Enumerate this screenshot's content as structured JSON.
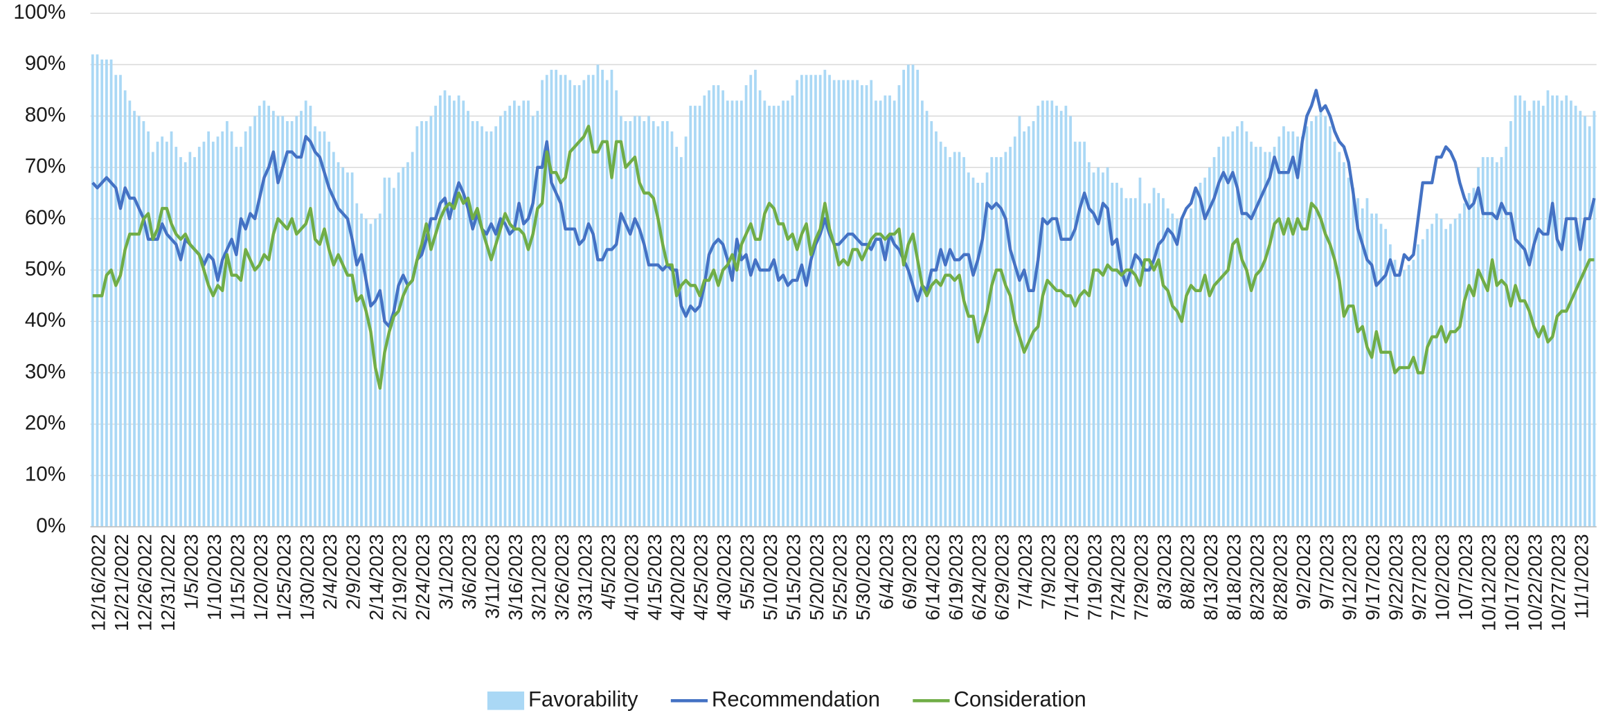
{
  "chart_data": {
    "type": "combo",
    "categories": [
      "12/16/2022",
      null,
      null,
      null,
      null,
      "12/21/2022",
      null,
      null,
      null,
      null,
      "12/26/2022",
      null,
      null,
      null,
      null,
      "12/31/2022",
      null,
      null,
      null,
      null,
      "1/5/2023",
      null,
      null,
      null,
      null,
      "1/10/2023",
      null,
      null,
      null,
      null,
      "1/15/2023",
      null,
      null,
      null,
      null,
      "1/20/2023",
      null,
      null,
      null,
      null,
      "1/25/2023",
      null,
      null,
      null,
      null,
      "1/30/2023",
      null,
      null,
      null,
      null,
      "2/4/2023",
      null,
      null,
      null,
      null,
      "2/9/2023",
      null,
      null,
      null,
      null,
      "2/14/2023",
      null,
      null,
      null,
      null,
      "2/19/2023",
      null,
      null,
      null,
      null,
      "2/24/2023",
      null,
      null,
      null,
      null,
      "3/1/2023",
      null,
      null,
      null,
      null,
      "3/6/2023",
      null,
      null,
      null,
      null,
      "3/11/2023",
      null,
      null,
      null,
      null,
      "3/16/2023",
      null,
      null,
      null,
      null,
      "3/21/2023",
      null,
      null,
      null,
      null,
      "3/26/2023",
      null,
      null,
      null,
      null,
      "3/31/2023",
      null,
      null,
      null,
      null,
      "4/5/2023",
      null,
      null,
      null,
      null,
      "4/10/2023",
      null,
      null,
      null,
      null,
      "4/15/2023",
      null,
      null,
      null,
      null,
      "4/20/2023",
      null,
      null,
      null,
      null,
      "4/25/2023",
      null,
      null,
      null,
      null,
      "4/30/2023",
      null,
      null,
      null,
      null,
      "5/5/2023",
      null,
      null,
      null,
      null,
      "5/10/2023",
      null,
      null,
      null,
      null,
      "5/15/2023",
      null,
      null,
      null,
      null,
      "5/20/2023",
      null,
      null,
      null,
      null,
      "5/25/2023",
      null,
      null,
      null,
      null,
      "5/30/2023",
      null,
      null,
      null,
      null,
      "6/4/2023",
      null,
      null,
      null,
      null,
      "6/9/2023",
      null,
      null,
      null,
      null,
      "6/14/2023",
      null,
      null,
      null,
      null,
      "6/19/2023",
      null,
      null,
      null,
      null,
      "6/24/2023",
      null,
      null,
      null,
      null,
      "6/29/2023",
      null,
      null,
      null,
      null,
      "7/4/2023",
      null,
      null,
      null,
      null,
      "7/9/2023",
      null,
      null,
      null,
      null,
      "7/14/2023",
      null,
      null,
      null,
      null,
      "7/19/2023",
      null,
      null,
      null,
      null,
      "7/24/2023",
      null,
      null,
      null,
      null,
      "7/29/2023",
      null,
      null,
      null,
      null,
      "8/3/2023",
      null,
      null,
      null,
      null,
      "8/8/2023",
      null,
      null,
      null,
      null,
      "8/13/2023",
      null,
      null,
      null,
      null,
      "8/18/2023",
      null,
      null,
      null,
      null,
      "8/23/2023",
      null,
      null,
      null,
      null,
      "8/28/2023",
      null,
      null,
      null,
      null,
      "9/2/2023",
      null,
      null,
      null,
      null,
      "9/7/2023",
      null,
      null,
      null,
      null,
      "9/12/2023",
      null,
      null,
      null,
      null,
      "9/17/2023",
      null,
      null,
      null,
      null,
      "9/22/2023",
      null,
      null,
      null,
      null,
      "9/27/2023",
      null,
      null,
      null,
      null,
      "10/2/2023",
      null,
      null,
      null,
      null,
      "10/7/2023",
      null,
      null,
      null,
      null,
      "10/12/2023",
      null,
      null,
      null,
      null,
      "10/17/2023",
      null,
      null,
      null,
      null,
      "10/22/2023",
      null,
      null,
      null,
      null,
      "10/27/2023",
      null,
      null,
      null,
      null,
      "11/1/2023",
      null,
      null,
      null,
      null
    ],
    "series": [
      {
        "name": "Favorability",
        "type": "bar",
        "color": "#aad8f5",
        "values": [
          92,
          92,
          91,
          91,
          91,
          88,
          88,
          85,
          83,
          81,
          80,
          79,
          77,
          73,
          75,
          76,
          75,
          77,
          74,
          72,
          71,
          73,
          72,
          74,
          75,
          77,
          75,
          76,
          77,
          79,
          77,
          74,
          74,
          77,
          78,
          80,
          82,
          83,
          82,
          81,
          80,
          80,
          79,
          79,
          80,
          81,
          83,
          82,
          78,
          77,
          77,
          75,
          73,
          71,
          70,
          69,
          69,
          63,
          61,
          60,
          59,
          60,
          61,
          68,
          68,
          66,
          69,
          70,
          71,
          73,
          78,
          79,
          79,
          80,
          82,
          84,
          85,
          84,
          83,
          84,
          83,
          81,
          79,
          79,
          78,
          77,
          77,
          78,
          80,
          81,
          82,
          83,
          82,
          83,
          83,
          80,
          81,
          87,
          88,
          89,
          89,
          88,
          88,
          87,
          86,
          86,
          87,
          88,
          88,
          90,
          89,
          87,
          89,
          85,
          80,
          79,
          79,
          80,
          80,
          79,
          80,
          79,
          78,
          79,
          79,
          77,
          74,
          72,
          76,
          82,
          82,
          82,
          84,
          85,
          86,
          86,
          85,
          83,
          83,
          83,
          83,
          86,
          88,
          89,
          85,
          83,
          82,
          82,
          82,
          83,
          83,
          84,
          87,
          88,
          88,
          88,
          88,
          88,
          89,
          88,
          87,
          87,
          87,
          87,
          87,
          87,
          86,
          86,
          87,
          83,
          83,
          84,
          84,
          83,
          86,
          89,
          90,
          90,
          89,
          83,
          81,
          79,
          77,
          75,
          74,
          72,
          73,
          73,
          72,
          69,
          68,
          67,
          67,
          69,
          72,
          72,
          72,
          73,
          74,
          76,
          80,
          77,
          78,
          79,
          82,
          83,
          83,
          83,
          82,
          81,
          82,
          80,
          75,
          75,
          75,
          71,
          69,
          70,
          69,
          70,
          67,
          67,
          66,
          64,
          64,
          64,
          68,
          63,
          63,
          66,
          65,
          64,
          62,
          61,
          60,
          60,
          60,
          62,
          65,
          67,
          68,
          70,
          72,
          74,
          76,
          76,
          77,
          78,
          79,
          77,
          75,
          74,
          74,
          73,
          73,
          74,
          76,
          78,
          77,
          77,
          76,
          76,
          78,
          79,
          80,
          81,
          80,
          78,
          75,
          73,
          71,
          68,
          66,
          64,
          62,
          64,
          61,
          61,
          59,
          58,
          55,
          52,
          50,
          50,
          51,
          52,
          55,
          56,
          58,
          59,
          61,
          60,
          58,
          59,
          60,
          61,
          63,
          65,
          66,
          70,
          72,
          72,
          72,
          71,
          72,
          74,
          79,
          84,
          84,
          83,
          81,
          83,
          83,
          82,
          85,
          84,
          84,
          83,
          84,
          83,
          82,
          81,
          80,
          78,
          81
        ]
      },
      {
        "name": "Recommendation",
        "type": "line",
        "color": "#4472c4",
        "values": [
          67,
          66,
          67,
          68,
          67,
          66,
          62,
          66,
          64,
          64,
          62,
          60,
          56,
          56,
          56,
          59,
          57,
          56,
          55,
          52,
          56,
          55,
          54,
          53,
          51,
          53,
          52,
          48,
          52,
          54,
          56,
          53,
          60,
          58,
          61,
          60,
          64,
          68,
          70,
          73,
          67,
          70,
          73,
          73,
          72,
          72,
          76,
          75,
          73,
          72,
          69,
          66,
          64,
          62,
          61,
          60,
          56,
          51,
          53,
          48,
          43,
          44,
          46,
          40,
          39,
          42,
          47,
          49,
          47,
          48,
          52,
          53,
          56,
          60,
          60,
          63,
          64,
          60,
          64,
          67,
          65,
          62,
          58,
          61,
          58,
          57,
          59,
          57,
          60,
          59,
          57,
          58,
          63,
          59,
          60,
          63,
          70,
          70,
          75,
          67,
          65,
          63,
          58,
          58,
          58,
          55,
          56,
          59,
          57,
          52,
          52,
          54,
          54,
          55,
          61,
          59,
          57,
          60,
          58,
          55,
          51,
          51,
          51,
          50,
          51,
          50,
          50,
          43,
          41,
          43,
          42,
          43,
          47,
          53,
          55,
          56,
          55,
          52,
          48,
          56,
          52,
          53,
          49,
          52,
          50,
          50,
          50,
          52,
          48,
          49,
          47,
          48,
          48,
          51,
          47,
          52,
          55,
          57,
          60,
          57,
          55,
          55,
          56,
          57,
          57,
          56,
          55,
          55,
          54,
          56,
          56,
          52,
          57,
          55,
          54,
          52,
          50,
          47,
          44,
          47,
          46,
          50,
          50,
          54,
          51,
          54,
          52,
          52,
          53,
          53,
          49,
          52,
          56,
          63,
          62,
          63,
          62,
          60,
          54,
          51,
          48,
          50,
          46,
          46,
          52,
          60,
          59,
          60,
          60,
          56,
          56,
          56,
          58,
          62,
          65,
          62,
          61,
          59,
          63,
          62,
          55,
          56,
          50,
          47,
          50,
          53,
          52,
          50,
          50,
          52,
          55,
          56,
          58,
          57,
          55,
          60,
          62,
          63,
          66,
          64,
          60,
          62,
          64,
          67,
          69,
          67,
          69,
          66,
          61,
          61,
          60,
          62,
          64,
          66,
          68,
          72,
          69,
          69,
          69,
          72,
          68,
          75,
          80,
          82,
          85,
          81,
          82,
          80,
          77,
          75,
          74,
          71,
          65,
          58,
          55,
          52,
          51,
          47,
          48,
          49,
          52,
          49,
          49,
          53,
          52,
          53,
          60,
          67,
          67,
          67,
          72,
          72,
          74,
          73,
          71,
          67,
          64,
          62,
          63,
          66,
          61,
          61,
          61,
          60,
          63,
          61,
          61,
          56,
          55,
          54,
          51,
          55,
          58,
          57,
          57,
          63,
          56,
          54,
          60,
          60,
          60,
          54,
          60,
          60,
          64
        ]
      },
      {
        "name": "Consideration",
        "type": "line",
        "color": "#70ad47",
        "values": [
          45,
          45,
          45,
          49,
          50,
          47,
          49,
          54,
          57,
          57,
          57,
          60,
          61,
          56,
          58,
          62,
          62,
          59,
          57,
          56,
          57,
          55,
          54,
          53,
          50,
          47,
          45,
          47,
          46,
          53,
          49,
          49,
          48,
          54,
          52,
          50,
          51,
          53,
          52,
          57,
          60,
          59,
          58,
          60,
          57,
          58,
          59,
          62,
          56,
          55,
          58,
          54,
          51,
          53,
          51,
          49,
          49,
          44,
          45,
          42,
          38,
          31,
          27,
          34,
          38,
          41,
          42,
          45,
          47,
          48,
          52,
          55,
          59,
          54,
          57,
          60,
          62,
          63,
          62,
          65,
          63,
          64,
          60,
          62,
          58,
          55,
          52,
          55,
          58,
          61,
          59,
          58,
          58,
          57,
          54,
          57,
          62,
          63,
          73,
          69,
          69,
          67,
          68,
          73,
          74,
          75,
          76,
          78,
          73,
          73,
          75,
          75,
          68,
          75,
          75,
          70,
          71,
          72,
          67,
          65,
          65,
          64,
          60,
          55,
          51,
          51,
          45,
          47,
          48,
          47,
          47,
          45,
          48,
          48,
          50,
          47,
          50,
          51,
          53,
          50,
          55,
          57,
          59,
          56,
          56,
          61,
          63,
          62,
          59,
          59,
          56,
          57,
          54,
          57,
          59,
          53,
          56,
          58,
          63,
          58,
          55,
          51,
          52,
          51,
          54,
          54,
          52,
          54,
          56,
          57,
          57,
          56,
          57,
          57,
          58,
          51,
          55,
          57,
          52,
          47,
          45,
          47,
          48,
          47,
          49,
          49,
          48,
          49,
          44,
          41,
          41,
          36,
          39,
          42,
          47,
          50,
          50,
          47,
          45,
          40,
          37,
          34,
          36,
          38,
          39,
          45,
          48,
          47,
          46,
          46,
          45,
          45,
          43,
          45,
          46,
          45,
          50,
          50,
          49,
          51,
          50,
          50,
          49,
          50,
          50,
          49,
          47,
          52,
          52,
          50,
          52,
          47,
          46,
          43,
          42,
          40,
          45,
          47,
          46,
          46,
          49,
          45,
          47,
          48,
          49,
          50,
          55,
          56,
          52,
          50,
          46,
          49,
          50,
          52,
          55,
          59,
          60,
          57,
          60,
          57,
          60,
          58,
          58,
          63,
          62,
          60,
          57,
          55,
          52,
          48,
          41,
          43,
          43,
          38,
          39,
          35,
          33,
          38,
          34,
          34,
          34,
          30,
          31,
          31,
          31,
          33,
          30,
          30,
          35,
          37,
          37,
          39,
          36,
          38,
          38,
          39,
          44,
          47,
          45,
          50,
          48,
          46,
          52,
          47,
          48,
          47,
          43,
          47,
          44,
          44,
          42,
          39,
          37,
          39,
          36,
          37,
          41,
          42,
          42,
          44,
          46,
          48,
          50,
          52,
          52
        ]
      }
    ],
    "ylim": [
      0,
      100
    ],
    "yticks": [
      {
        "value": 0,
        "label": "0%"
      },
      {
        "value": 10,
        "label": "10%"
      },
      {
        "value": 20,
        "label": "20%"
      },
      {
        "value": 30,
        "label": "30%"
      },
      {
        "value": 40,
        "label": "40%"
      },
      {
        "value": 50,
        "label": "50%"
      },
      {
        "value": 60,
        "label": "60%"
      },
      {
        "value": 70,
        "label": "70%"
      },
      {
        "value": 80,
        "label": "80%"
      },
      {
        "value": 90,
        "label": "90%"
      },
      {
        "value": 100,
        "label": "100%"
      }
    ],
    "grid": true,
    "legend": "bottom"
  }
}
